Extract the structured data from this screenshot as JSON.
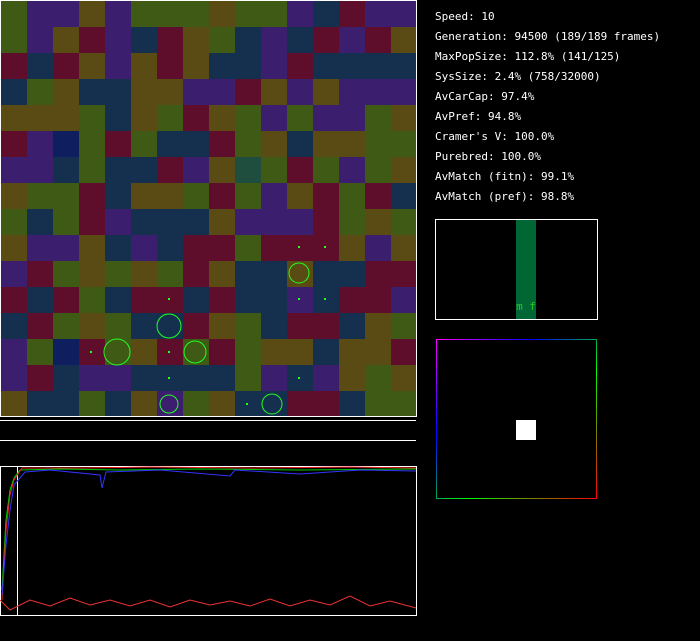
{
  "stats": [
    "Speed: 10",
    "Generation: 94500 (189/189 frames)",
    "MaxPopSize: 112.8% (141/125)",
    "SysSize: 2.4% (758/32000)",
    "AvCarCap: 97.4%",
    "AvPref: 94.8%",
    "Cramer's V: 100.0%",
    "Purebred: 100.0%",
    "AvMatch (fitn): 99.1%",
    "AvMatch (pref): 98.8%"
  ],
  "histogram": {
    "label": "m f"
  }
}
